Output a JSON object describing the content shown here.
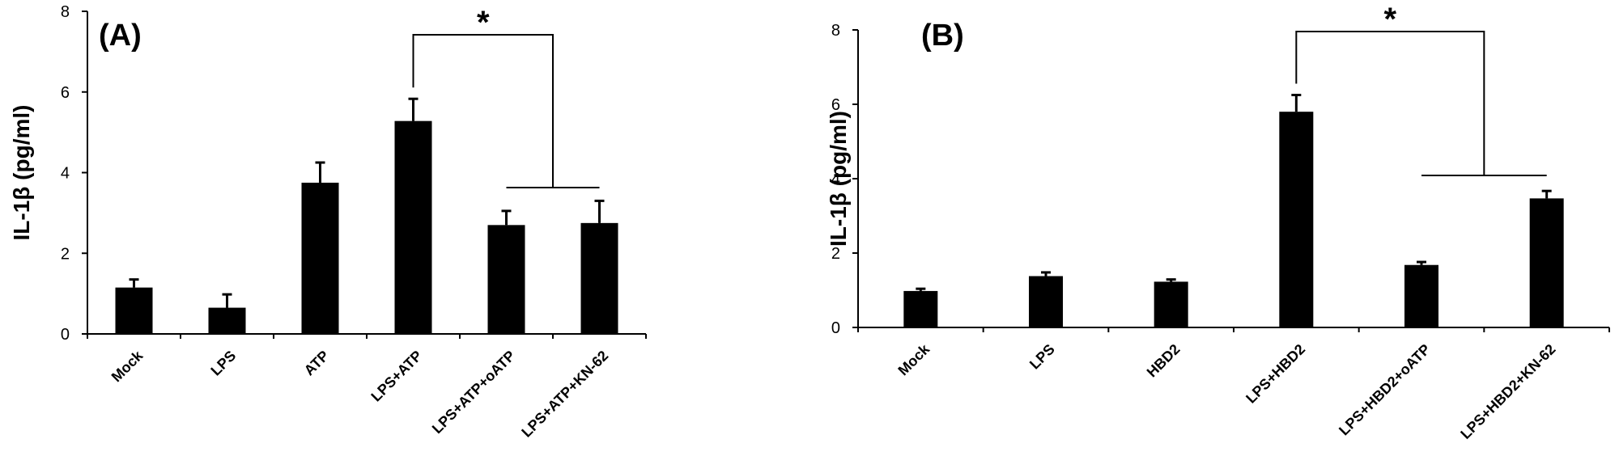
{
  "chart_data": [
    {
      "type": "bar",
      "panel_label": "(A)",
      "ylabel": "IL-1β (pg/ml)",
      "xlabel": "",
      "ylim": [
        0,
        8
      ],
      "yticks": [
        0,
        2,
        4,
        6,
        8
      ],
      "categories": [
        "Mock",
        "LPS",
        "ATP",
        "LPS+ATP",
        "LPS+ATP+oATP",
        "LPS+ATP+KN-62"
      ],
      "values": [
        1.15,
        0.65,
        3.75,
        5.28,
        2.7,
        2.75
      ],
      "errors": [
        0.2,
        0.33,
        0.5,
        0.55,
        0.35,
        0.55
      ],
      "significance": {
        "from": "LPS+ATP",
        "to": [
          "LPS+ATP+oATP",
          "LPS+ATP+KN-62"
        ],
        "marker": "*"
      }
    },
    {
      "type": "bar",
      "panel_label": "(B)",
      "ylabel": "IL-1β (pg/ml)",
      "xlabel": "",
      "ylim": [
        0,
        8
      ],
      "yticks": [
        0,
        2,
        4,
        6,
        8
      ],
      "categories": [
        "Mock",
        "LPS",
        "HBD2",
        "LPS+HBD2",
        "LPS+HBD2+oATP",
        "LPS+HBD2+KN-62"
      ],
      "values": [
        0.98,
        1.38,
        1.23,
        5.8,
        1.68,
        3.47
      ],
      "errors": [
        0.06,
        0.1,
        0.06,
        0.45,
        0.08,
        0.2
      ],
      "significance": {
        "from": "LPS+HBD2",
        "to": [
          "LPS+HBD2+oATP",
          "LPS+HBD2+KN-62"
        ],
        "marker": "*"
      }
    }
  ]
}
